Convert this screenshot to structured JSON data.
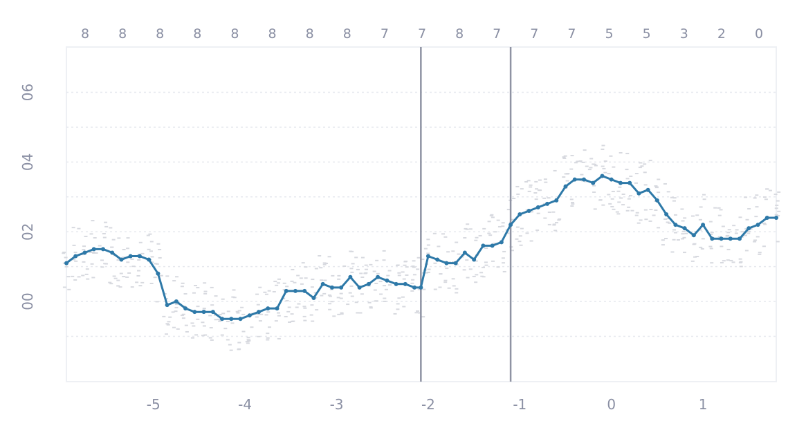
{
  "chart_data": {
    "type": "line",
    "title": "",
    "xlabel": "",
    "ylabel": "",
    "xlim": [
      -5.95,
      1.8
    ],
    "ylim": [
      -0.23,
      0.73
    ],
    "x_ticks": [
      {
        "value": -5,
        "label": "-5"
      },
      {
        "value": -4,
        "label": "-4"
      },
      {
        "value": -3,
        "label": "-3"
      },
      {
        "value": -2,
        "label": "-2"
      },
      {
        "value": -1,
        "label": "-1"
      },
      {
        "value": 0,
        "label": "0"
      },
      {
        "value": 1,
        "label": "1"
      }
    ],
    "y_ticks": [
      {
        "value": 0.0,
        "label": "00"
      },
      {
        "value": 0.2,
        "label": "02"
      },
      {
        "value": 0.4,
        "label": "04"
      },
      {
        "value": 0.6,
        "label": "06"
      }
    ],
    "top_count_labels": [
      "8",
      "8",
      "8",
      "8",
      "8",
      "8",
      "8",
      "8",
      "7",
      "7",
      "8",
      "7",
      "7",
      "7",
      "5",
      "5",
      "3",
      "2",
      "0"
    ],
    "vertical_reference_lines": [
      -2.08,
      -1.1
    ],
    "grid": true,
    "series": [
      {
        "color": "#2e79a8",
        "x": [
          -5.95,
          -5.85,
          -5.75,
          -5.65,
          -5.55,
          -5.45,
          -5.35,
          -5.25,
          -5.15,
          -5.05,
          -4.95,
          -4.85,
          -4.75,
          -4.65,
          -4.55,
          -4.45,
          -4.35,
          -4.25,
          -4.15,
          -4.05,
          -3.95,
          -3.85,
          -3.75,
          -3.65,
          -3.55,
          -3.45,
          -3.35,
          -3.25,
          -3.15,
          -3.05,
          -2.95,
          -2.85,
          -2.75,
          -2.65,
          -2.55,
          -2.45,
          -2.35,
          -2.25,
          -2.15,
          -2.08,
          -2.0,
          -1.9,
          -1.8,
          -1.7,
          -1.6,
          -1.5,
          -1.4,
          -1.3,
          -1.2,
          -1.1,
          -1.0,
          -0.9,
          -0.8,
          -0.7,
          -0.6,
          -0.5,
          -0.4,
          -0.3,
          -0.2,
          -0.1,
          0.0,
          0.1,
          0.2,
          0.3,
          0.4,
          0.5,
          0.6,
          0.7,
          0.8,
          0.9,
          1.0,
          1.1,
          1.2,
          1.3,
          1.4,
          1.5,
          1.6,
          1.7,
          1.8
        ],
        "y": [
          0.11,
          0.13,
          0.14,
          0.15,
          0.15,
          0.14,
          0.12,
          0.13,
          0.13,
          0.12,
          0.08,
          -0.01,
          0.0,
          -0.02,
          -0.03,
          -0.03,
          -0.03,
          -0.05,
          -0.05,
          -0.05,
          -0.04,
          -0.03,
          -0.02,
          -0.02,
          0.03,
          0.03,
          0.03,
          0.01,
          0.05,
          0.04,
          0.04,
          0.07,
          0.04,
          0.05,
          0.07,
          0.06,
          0.05,
          0.05,
          0.04,
          0.04,
          0.13,
          0.12,
          0.11,
          0.11,
          0.14,
          0.12,
          0.16,
          0.16,
          0.17,
          0.22,
          0.25,
          0.26,
          0.27,
          0.28,
          0.29,
          0.33,
          0.35,
          0.35,
          0.34,
          0.36,
          0.35,
          0.34,
          0.34,
          0.31,
          0.32,
          0.29,
          0.25,
          0.22,
          0.21,
          0.19,
          0.22,
          0.18,
          0.18,
          0.18,
          0.18,
          0.21,
          0.22,
          0.24,
          0.24
        ]
      }
    ]
  }
}
